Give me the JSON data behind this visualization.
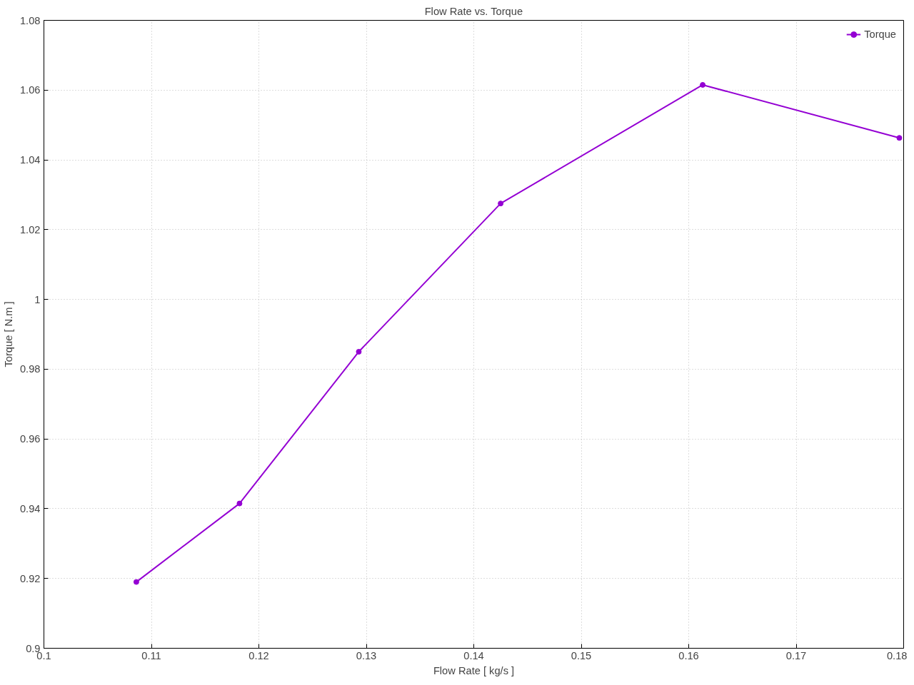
{
  "chart_data": {
    "type": "line",
    "title": "Flow Rate vs. Torque",
    "xlabel": "Flow Rate [ kg/s ]",
    "ylabel": "Torque [ N.m ]",
    "x": [
      0.1086,
      0.1182,
      0.1293,
      0.1425,
      0.1613,
      0.1796
    ],
    "series": [
      {
        "name": "Torque",
        "color": "#9400d3",
        "values": [
          0.919,
          0.9415,
          0.985,
          1.0275,
          1.0615,
          1.0463
        ]
      }
    ],
    "xlim": [
      0.1,
      0.18
    ],
    "xticks": [
      0.1,
      0.11,
      0.12,
      0.13,
      0.14,
      0.15,
      0.16,
      0.17,
      0.18
    ],
    "ylim": [
      0.9,
      1.08
    ],
    "yticks": [
      0.9,
      0.92,
      0.94,
      0.96,
      0.98,
      1,
      1.02,
      1.04,
      1.06,
      1.08
    ],
    "grid": true,
    "legend": "top right",
    "marker": "circle",
    "line_style": "solid"
  }
}
